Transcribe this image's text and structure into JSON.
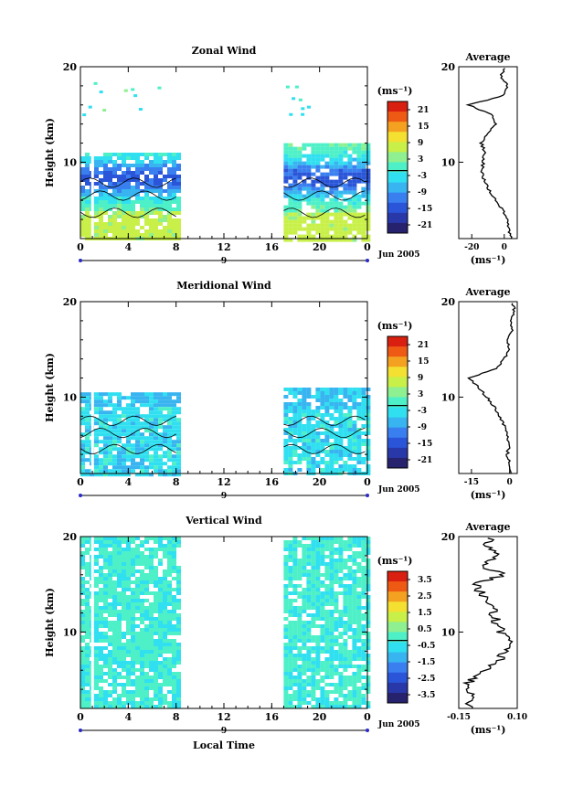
{
  "chart_data": [
    {
      "type": "heatmap",
      "title": "Zonal Wind",
      "ylabel": "Height (km)",
      "ylim": [
        2,
        20
      ],
      "yticks": [
        "20",
        "10"
      ],
      "xlim": [
        0,
        24
      ],
      "xticks": [
        "0",
        "4",
        "8",
        "12",
        "16",
        "20",
        "0"
      ],
      "xdate_marker": "9",
      "date_label": "Jun 2005",
      "data_ranges_hours": [
        [
          0,
          8.2
        ],
        [
          17,
          24
        ]
      ],
      "data_top_km": [
        11,
        12
      ],
      "colorbar": {
        "unit_label": "(ms⁻¹)",
        "ticks": [
          "21",
          "15",
          "9",
          "3",
          "-3",
          "-9",
          "-15",
          "-21"
        ],
        "range": [
          -24,
          24
        ]
      },
      "profile": {
        "title": "Average",
        "xlabel": "(ms⁻¹)",
        "xticks": [
          "-20",
          "0"
        ],
        "yticks": [
          "20",
          "10"
        ],
        "xlim": [
          -28,
          8
        ],
        "heights": [
          2,
          3,
          4,
          5,
          6,
          7,
          8,
          9,
          10,
          11,
          12,
          13,
          14,
          15,
          16,
          17,
          18,
          19,
          20
        ],
        "values": [
          4,
          3,
          2,
          -1,
          -5,
          -9,
          -12,
          -14,
          -13,
          -12,
          -14,
          -11,
          -5,
          -8,
          -22,
          0,
          2,
          -2,
          1
        ]
      }
    },
    {
      "type": "heatmap",
      "title": "Meridional Wind",
      "ylabel": "Height (km)",
      "ylim": [
        2,
        20
      ],
      "yticks": [
        "20",
        "10"
      ],
      "xlim": [
        0,
        24
      ],
      "xticks": [
        "0",
        "4",
        "8",
        "12",
        "16",
        "20",
        "0"
      ],
      "xdate_marker": "9",
      "date_label": "Jun 2005",
      "data_ranges_hours": [
        [
          0,
          8.2
        ],
        [
          17,
          24
        ]
      ],
      "data_top_km": [
        10.5,
        11
      ],
      "colorbar": {
        "unit_label": "(ms⁻¹)",
        "ticks": [
          "21",
          "15",
          "9",
          "3",
          "-3",
          "-9",
          "-15",
          "-21"
        ],
        "range": [
          -24,
          24
        ]
      },
      "profile": {
        "title": "Average",
        "xlabel": "(ms⁻¹)",
        "xticks": [
          "-15",
          "0"
        ],
        "yticks": [
          "20",
          "10"
        ],
        "xlim": [
          -20,
          3
        ],
        "heights": [
          2,
          3,
          4,
          5,
          6,
          7,
          8,
          9,
          10,
          11,
          12,
          13,
          14,
          15,
          16,
          17,
          18,
          19,
          20
        ],
        "values": [
          0,
          0,
          -1,
          0,
          -1,
          -2,
          -4,
          -6,
          -9,
          -12,
          -16,
          -5,
          -2,
          0,
          -1,
          1,
          0,
          2,
          1
        ]
      }
    },
    {
      "type": "heatmap",
      "title": "Vertical Wind",
      "ylabel": "Height (km)",
      "ylim": [
        2,
        20
      ],
      "yticks": [
        "20",
        "10"
      ],
      "xlim": [
        0,
        24
      ],
      "xticks": [
        "0",
        "4",
        "8",
        "12",
        "16",
        "20",
        "0"
      ],
      "xdate_marker": "9",
      "date_label": "Jun 2005",
      "xlabel": "Local Time",
      "data_ranges_hours": [
        [
          0,
          8.2
        ],
        [
          17,
          24
        ]
      ],
      "data_top_km": [
        20,
        20
      ],
      "colorbar": {
        "unit_label": "(ms⁻¹)",
        "ticks": [
          "3.5",
          "2.5",
          "1.5",
          "0.5",
          "-0.5",
          "-1.5",
          "-2.5",
          "-3.5"
        ],
        "range": [
          -4,
          4
        ]
      },
      "profile": {
        "title": "Average",
        "xlabel": "(ms⁻¹)",
        "xticks": [
          "-0.15",
          "0.10"
        ],
        "yticks": [
          "20",
          "10"
        ],
        "xlim": [
          -0.15,
          0.1
        ],
        "heights": [
          2,
          3,
          4,
          5,
          6,
          7,
          8,
          9,
          10,
          11,
          12,
          13,
          14,
          15,
          16,
          17,
          18,
          19,
          20
        ],
        "values": [
          -0.11,
          -0.09,
          -0.12,
          -0.1,
          -0.04,
          0.02,
          0.05,
          0.06,
          0.03,
          0.01,
          0.0,
          -0.02,
          -0.05,
          -0.08,
          0.04,
          -0.06,
          0.02,
          -0.03,
          0.0
        ]
      }
    }
  ]
}
